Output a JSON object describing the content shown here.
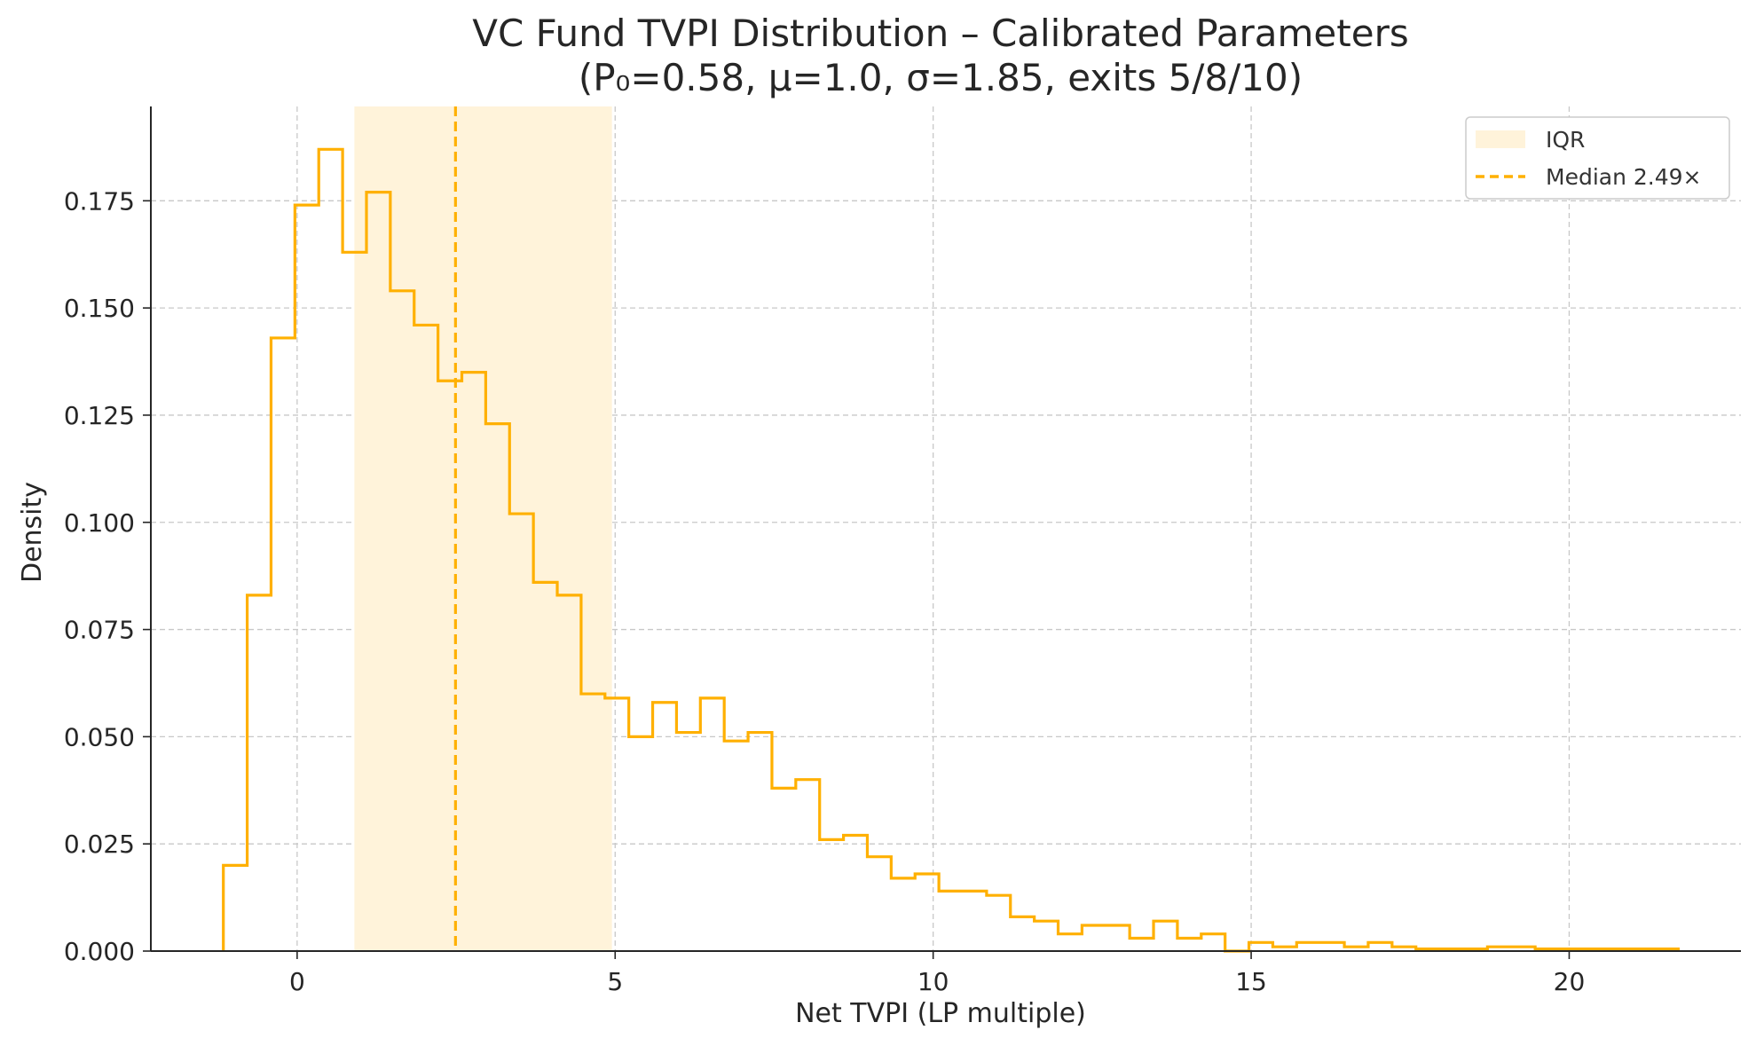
{
  "chart_data": {
    "type": "histogram",
    "title": "VC Fund TVPI Distribution – Calibrated Parameters",
    "subtitle": "(P₀=0.58, μ=1.0, σ=1.85, exits 5/8/10)",
    "xlabel": "Net TVPI (LP multiple)",
    "ylabel": "Density",
    "xlim": [
      -2.3,
      22.7
    ],
    "ylim": [
      0,
      0.197
    ],
    "xticks": [
      0,
      5,
      10,
      15,
      20
    ],
    "yticks": [
      0.0,
      0.025,
      0.05,
      0.075,
      0.1,
      0.125,
      0.15,
      0.175
    ],
    "grid": true,
    "legend_position": "top-right",
    "colors": {
      "line": "#FFB000",
      "iqr_fill": "#FFF3DA",
      "grid": "#c8c8c8"
    },
    "bin_edges": [
      -1.16,
      -0.785,
      -0.41,
      -0.035,
      0.34,
      0.715,
      1.09,
      1.465,
      1.84,
      2.215,
      2.59,
      2.965,
      3.34,
      3.715,
      4.09,
      4.465,
      4.84,
      5.215,
      5.59,
      5.965,
      6.34,
      6.715,
      7.09,
      7.465,
      7.84,
      8.215,
      8.59,
      8.965,
      9.34,
      9.715,
      10.09,
      10.465,
      10.84,
      11.215,
      11.59,
      11.965,
      12.34,
      12.715,
      13.09,
      13.465,
      13.84,
      14.215,
      14.59,
      14.965,
      15.34,
      15.715,
      16.09,
      16.465,
      16.84,
      17.215,
      17.59,
      17.965,
      18.34,
      18.715,
      19.09,
      19.465,
      19.84,
      20.215,
      20.59,
      20.965,
      21.34,
      21.715
    ],
    "density": [
      0.02,
      0.083,
      0.143,
      0.174,
      0.187,
      0.163,
      0.177,
      0.154,
      0.146,
      0.133,
      0.135,
      0.123,
      0.102,
      0.086,
      0.083,
      0.06,
      0.059,
      0.05,
      0.058,
      0.051,
      0.059,
      0.049,
      0.051,
      0.038,
      0.04,
      0.026,
      0.027,
      0.022,
      0.017,
      0.018,
      0.014,
      0.014,
      0.013,
      0.008,
      0.007,
      0.004,
      0.006,
      0.006,
      0.003,
      0.007,
      0.003,
      0.004,
      0.0,
      0.002,
      0.001,
      0.002,
      0.002,
      0.001,
      0.002,
      0.001,
      0.0005,
      0.0005,
      0.0005,
      0.001,
      0.001,
      0.0005,
      0.0005,
      0.0005,
      0.0005,
      0.0005,
      0.0005
    ],
    "iqr": [
      0.9,
      4.95
    ],
    "median": 2.49,
    "legend": [
      {
        "label": "IQR",
        "kind": "band"
      },
      {
        "label": "Median 2.49×",
        "kind": "dashed-line"
      }
    ]
  }
}
